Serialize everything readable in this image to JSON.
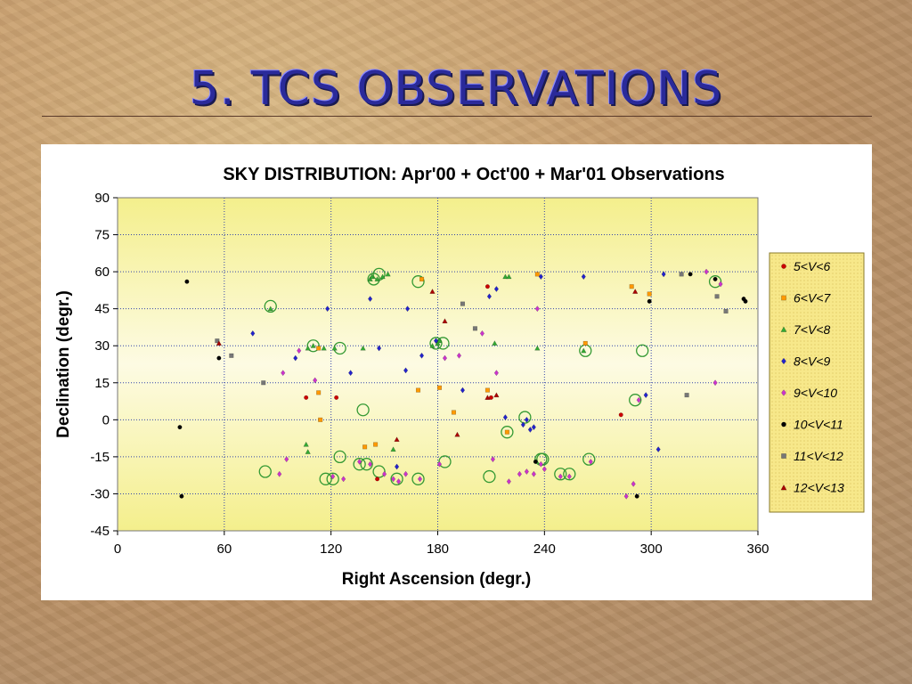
{
  "slide": {
    "title": "5. TCS OBSERVATIONS"
  },
  "chart_data": {
    "type": "scatter",
    "title": "SKY DISTRIBUTION: Apr'00 + Oct'00 + Mar'01 Observations",
    "xlabel": "Right Ascension (degr.)",
    "ylabel": "Declination (degr.)",
    "xlim": [
      0,
      360
    ],
    "ylim": [
      -45,
      90
    ],
    "xticks": [
      0,
      60,
      120,
      180,
      240,
      300,
      360
    ],
    "yticks": [
      -45,
      -30,
      -15,
      0,
      15,
      30,
      45,
      60,
      75,
      90
    ],
    "grid": true,
    "legend_position": "right",
    "series": [
      {
        "name": "5<V<6",
        "marker": "circle",
        "color": "#cc0000",
        "points": [
          [
            106,
            9
          ],
          [
            123,
            9
          ],
          [
            208,
            54
          ],
          [
            210,
            9
          ],
          [
            283,
            2
          ],
          [
            146,
            -24
          ]
        ]
      },
      {
        "name": "6<V<7",
        "marker": "square",
        "color": "#ff9900",
        "points": [
          [
            113,
            11
          ],
          [
            113,
            29
          ],
          [
            114,
            0
          ],
          [
            139,
            -11
          ],
          [
            145,
            -10
          ],
          [
            169,
            12
          ],
          [
            171,
            57
          ],
          [
            181,
            13
          ],
          [
            189,
            3
          ],
          [
            208,
            12
          ],
          [
            219,
            -5
          ],
          [
            236,
            59
          ],
          [
            263,
            31
          ],
          [
            289,
            54
          ],
          [
            299,
            51
          ]
        ]
      },
      {
        "name": "7<V<8",
        "marker": "triangle",
        "color": "#33aa33",
        "points": [
          [
            86,
            45
          ],
          [
            106,
            -10
          ],
          [
            107,
            -13
          ],
          [
            107,
            29
          ],
          [
            110,
            30
          ],
          [
            116,
            29
          ],
          [
            122,
            29
          ],
          [
            138,
            29
          ],
          [
            142,
            57
          ],
          [
            143,
            58
          ],
          [
            146,
            57
          ],
          [
            149,
            58
          ],
          [
            152,
            59
          ],
          [
            155,
            -12
          ],
          [
            177,
            30
          ],
          [
            180,
            31
          ],
          [
            181,
            32
          ],
          [
            212,
            31
          ],
          [
            218,
            58
          ],
          [
            220,
            58
          ],
          [
            236,
            29
          ],
          [
            262,
            28
          ]
        ]
      },
      {
        "name": "8<V<9",
        "marker": "diamond",
        "color": "#2222cc",
        "points": [
          [
            76,
            35
          ],
          [
            100,
            25
          ],
          [
            118,
            45
          ],
          [
            131,
            19
          ],
          [
            142,
            49
          ],
          [
            147,
            29
          ],
          [
            157,
            -19
          ],
          [
            162,
            20
          ],
          [
            163,
            45
          ],
          [
            171,
            26
          ],
          [
            179,
            32
          ],
          [
            194,
            12
          ],
          [
            209,
            50
          ],
          [
            213,
            53
          ],
          [
            218,
            1
          ],
          [
            228,
            -2
          ],
          [
            230,
            0
          ],
          [
            232,
            -4
          ],
          [
            234,
            -3
          ],
          [
            238,
            58
          ],
          [
            262,
            58
          ],
          [
            297,
            10
          ],
          [
            304,
            -12
          ],
          [
            307,
            59
          ]
        ]
      },
      {
        "name": "9<V<10",
        "marker": "diamond",
        "color": "#cc33cc",
        "points": [
          [
            91,
            -22
          ],
          [
            93,
            19
          ],
          [
            95,
            -16
          ],
          [
            102,
            28
          ],
          [
            111,
            16
          ],
          [
            121,
            -23
          ],
          [
            127,
            -24
          ],
          [
            136,
            -17
          ],
          [
            142,
            -18
          ],
          [
            150,
            -22
          ],
          [
            155,
            -24
          ],
          [
            158,
            -25
          ],
          [
            162,
            -22
          ],
          [
            170,
            -24
          ],
          [
            181,
            -18
          ],
          [
            184,
            25
          ],
          [
            192,
            26
          ],
          [
            205,
            35
          ],
          [
            211,
            -16
          ],
          [
            213,
            19
          ],
          [
            220,
            -25
          ],
          [
            226,
            -22
          ],
          [
            230,
            -21
          ],
          [
            234,
            -22
          ],
          [
            236,
            45
          ],
          [
            238,
            -18
          ],
          [
            240,
            -20
          ],
          [
            249,
            -23
          ],
          [
            254,
            -23
          ],
          [
            266,
            -17
          ],
          [
            286,
            -31
          ],
          [
            290,
            -26
          ],
          [
            293,
            8
          ],
          [
            331,
            60
          ],
          [
            336,
            15
          ],
          [
            339,
            55
          ]
        ]
      },
      {
        "name": "10<V<11",
        "marker": "circle",
        "color": "#000000",
        "points": [
          [
            35,
            -3
          ],
          [
            39,
            56
          ],
          [
            57,
            25
          ],
          [
            235,
            -17
          ],
          [
            292,
            -31
          ],
          [
            299,
            48
          ],
          [
            322,
            59
          ],
          [
            336,
            57
          ],
          [
            352,
            49
          ],
          [
            353,
            48
          ],
          [
            36,
            -31
          ]
        ]
      },
      {
        "name": "11<V<12",
        "marker": "square",
        "color": "#777777",
        "points": [
          [
            56,
            32
          ],
          [
            64,
            26
          ],
          [
            82,
            15
          ],
          [
            194,
            47
          ],
          [
            201,
            37
          ],
          [
            317,
            59
          ],
          [
            320,
            10
          ],
          [
            337,
            50
          ],
          [
            342,
            44
          ]
        ]
      },
      {
        "name": "12<V<13",
        "marker": "triangle",
        "color": "#aa0000",
        "points": [
          [
            57,
            31
          ],
          [
            157,
            -8
          ],
          [
            177,
            52
          ],
          [
            184,
            40
          ],
          [
            191,
            -6
          ],
          [
            208,
            9
          ],
          [
            213,
            10
          ],
          [
            291,
            52
          ]
        ]
      }
    ],
    "highlighted_points": [
      [
        86,
        46
      ],
      [
        83,
        -21
      ],
      [
        110,
        30
      ],
      [
        117,
        -24
      ],
      [
        121,
        -24
      ],
      [
        125,
        -15
      ],
      [
        125,
        29
      ],
      [
        138,
        4
      ],
      [
        136,
        -18
      ],
      [
        140,
        -18
      ],
      [
        147,
        -21
      ],
      [
        157,
        -24
      ],
      [
        169,
        -24
      ],
      [
        147,
        59
      ],
      [
        144,
        57
      ],
      [
        169,
        56
      ],
      [
        179,
        31
      ],
      [
        183,
        31
      ],
      [
        184,
        -17
      ],
      [
        209,
        -23
      ],
      [
        219,
        -5
      ],
      [
        229,
        1
      ],
      [
        238,
        -16
      ],
      [
        239,
        -16
      ],
      [
        249,
        -22
      ],
      [
        254,
        -22
      ],
      [
        263,
        28
      ],
      [
        265,
        -16
      ],
      [
        291,
        8
      ],
      [
        295,
        28
      ],
      [
        336,
        56
      ]
    ]
  }
}
